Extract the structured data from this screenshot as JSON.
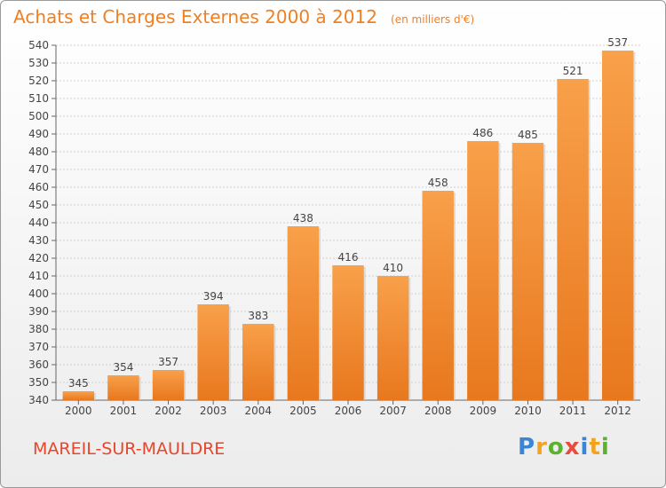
{
  "header": {
    "title": "Achats et Charges Externes 2000 à 2012",
    "subtitle": "(en milliers d'€)"
  },
  "footer": {
    "commune": "MAREIL-SUR-MAULDRE",
    "brand_letters": [
      "P",
      "r",
      "o",
      "x",
      "i",
      "t",
      "i"
    ]
  },
  "colors": {
    "bar_top": "#f8a04a",
    "bar_bottom": "#e8781e",
    "title": "#f07f22",
    "commune": "#e8462a",
    "grid": "#d0d0d0",
    "brand": [
      "#3a86d4",
      "#f2a41f",
      "#5bb230",
      "#e84c3d",
      "#3a86d4",
      "#f2a41f",
      "#5bb230"
    ]
  },
  "chart_data": {
    "type": "bar",
    "categories": [
      "2000",
      "2001",
      "2002",
      "2003",
      "2004",
      "2005",
      "2006",
      "2007",
      "2008",
      "2009",
      "2010",
      "2011",
      "2012"
    ],
    "values": [
      345,
      354,
      357,
      394,
      383,
      438,
      416,
      410,
      458,
      486,
      485,
      521,
      537
    ],
    "ylim": [
      340,
      540
    ],
    "yticks": [
      340,
      350,
      360,
      370,
      380,
      390,
      400,
      410,
      420,
      430,
      440,
      450,
      460,
      470,
      480,
      490,
      500,
      510,
      520,
      530,
      540
    ],
    "grid": true
  }
}
